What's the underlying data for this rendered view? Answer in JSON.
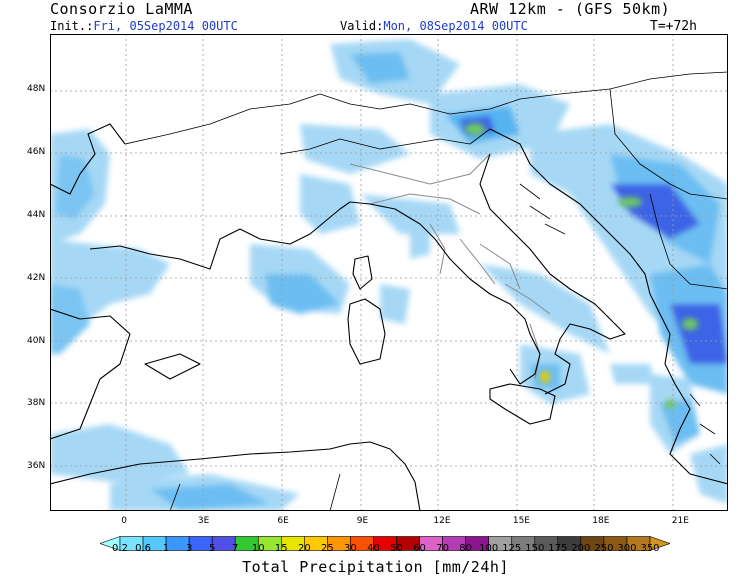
{
  "header": {
    "org": "Consorzio LaMMA",
    "model": "ARW 12km - (GFS 50km)",
    "init_label": "Init.:",
    "init_value": "Fri, 05Sep2014 00UTC",
    "valid_label": "Valid:",
    "valid_value": "Mon, 08Sep2014 00UTC",
    "step": "T=+72h"
  },
  "map": {
    "lat_labels": [
      {
        "text": "48N",
        "lat": 48
      },
      {
        "text": "46N",
        "lat": 46
      },
      {
        "text": "44N",
        "lat": 44
      },
      {
        "text": "42N",
        "lat": 42
      },
      {
        "text": "40N",
        "lat": 40
      },
      {
        "text": "38N",
        "lat": 38
      },
      {
        "text": "36N",
        "lat": 36
      }
    ],
    "lon_labels": [
      {
        "text": "0",
        "lon": 0
      },
      {
        "text": "3E",
        "lon": 3
      },
      {
        "text": "6E",
        "lon": 6
      },
      {
        "text": "9E",
        "lon": 9
      },
      {
        "text": "12E",
        "lon": 12
      },
      {
        "text": "15E",
        "lon": 15
      },
      {
        "text": "18E",
        "lon": 18
      },
      {
        "text": "21E",
        "lon": 21
      }
    ],
    "lon_range": [
      -2.8,
      22.8
    ],
    "lat_range": [
      34.6,
      49.8
    ]
  },
  "colorbar": {
    "title": "Total Precipitation [mm/24h]",
    "labels": [
      "0.2",
      "0.6",
      "1",
      "3",
      "5",
      "7",
      "10",
      "15",
      "20",
      "25",
      "30",
      "40",
      "50",
      "60",
      "70",
      "80",
      "100",
      "125",
      "150",
      "175",
      "200",
      "250",
      "300",
      "350"
    ],
    "colors": [
      "#a0ffff",
      "#7ae4ff",
      "#55c8ff",
      "#3c96ff",
      "#3c64ff",
      "#5050e6",
      "#32c832",
      "#96e632",
      "#e6e600",
      "#ffc800",
      "#ff9600",
      "#ff5000",
      "#e60000",
      "#b40000",
      "#dc64c8",
      "#b43cb4",
      "#8c148c",
      "#a0a0a0",
      "#7d7d7d",
      "#5a5a5a",
      "#3c3c3c",
      "#6e4614",
      "#8c5a14",
      "#b4781e",
      "#d2961e"
    ]
  },
  "colors": {
    "precip_light": "#a6d8f5",
    "precip_mid": "#55b4f0",
    "precip_heavy": "#3c64e6",
    "precip_core": "#6ec864",
    "coast": "#000000",
    "region_border": "#8a8a8a"
  }
}
